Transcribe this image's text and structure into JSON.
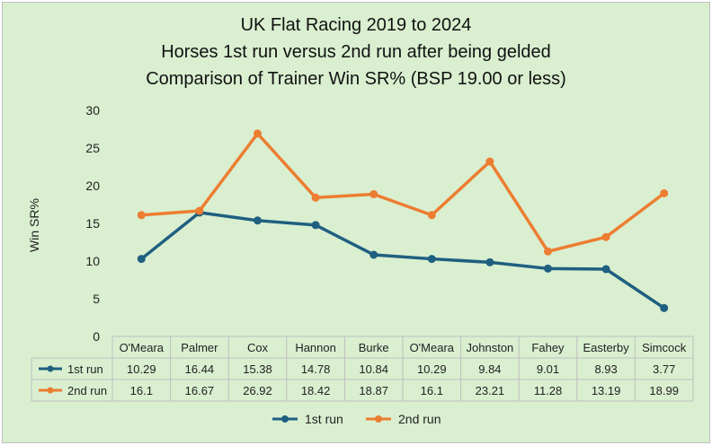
{
  "chart_data": {
    "type": "line",
    "title": [
      "UK Flat Racing 2019 to 2024",
      "Horses 1st run versus 2nd run after being gelded",
      "Comparison of Trainer Win SR% (BSP 19.00 or less)"
    ],
    "ylabel": "Win SR%",
    "ylim": [
      0,
      30
    ],
    "yticks": [
      "0",
      "5",
      "10",
      "15",
      "20",
      "25",
      "30"
    ],
    "categories": [
      "O'Meara",
      "Palmer",
      "Cox",
      "Hannon",
      "Burke",
      "O'Meara",
      "Johnston",
      "Fahey",
      "Easterby",
      "Simcock"
    ],
    "series": [
      {
        "name": "1st run",
        "color": "#1f5f80",
        "values": [
          10.29,
          16.44,
          15.38,
          14.78,
          10.84,
          10.29,
          9.84,
          9.01,
          8.93,
          3.77
        ],
        "labels": [
          "10.29",
          "16.44",
          "15.38",
          "14.78",
          "10.84",
          "10.29",
          "9.84",
          "9.01",
          "8.93",
          "3.77"
        ]
      },
      {
        "name": "2nd run",
        "color": "#ed7d31",
        "values": [
          16.1,
          16.67,
          26.92,
          18.42,
          18.87,
          16.1,
          23.21,
          11.28,
          13.19,
          18.99
        ],
        "labels": [
          "16.1",
          "16.67",
          "26.92",
          "18.42",
          "18.87",
          "16.1",
          "23.21",
          "11.28",
          "13.19",
          "18.99"
        ]
      }
    ],
    "grid": false,
    "legend": "bottom",
    "data_table": true
  }
}
